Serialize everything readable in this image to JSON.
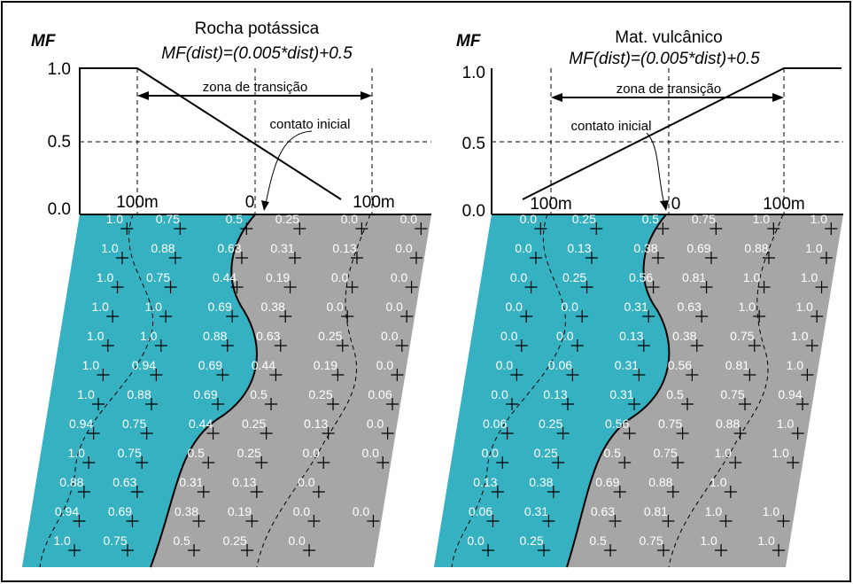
{
  "panels": [
    {
      "axis_label": "MF",
      "title": "Rocha potássica",
      "formula": "MF(dist)=(0.005*dist)+0.5",
      "y_labels": [
        "1.0",
        "0.5",
        "0.0"
      ],
      "x_labels": [
        "100m",
        "0",
        "100m"
      ],
      "zone_label": "zona de transição",
      "contact_label": "contato inicial",
      "grid": [
        [
          "1.0",
          "0.75",
          "0.5",
          "0.25",
          "0.0",
          "0.0"
        ],
        [
          "1.0",
          "0.88",
          "0.63",
          "0.31",
          "0.13",
          "0.0"
        ],
        [
          "1.0",
          "0.75",
          "0.44",
          "0.19",
          "0.0",
          "0.0"
        ],
        [
          "1.0",
          "1.0",
          "0.69",
          "0.38",
          "0.0",
          "0.0"
        ],
        [
          "1.0",
          "1.0",
          "0.88",
          "0.63",
          "0.25",
          "0.0"
        ],
        [
          "1.0",
          "0.94",
          "0.69",
          "0.44",
          "0.19",
          "0.0"
        ],
        [
          "1.0",
          "0.88",
          "0.69",
          "0.5",
          "0.25",
          "0.06"
        ],
        [
          "0.94",
          "0.75",
          "0.44",
          "0.25",
          "0.13",
          "0.0"
        ],
        [
          "1.0",
          "0.75",
          "0.5",
          "0.25",
          "0.0",
          "0.0"
        ],
        [
          "0.88",
          "0.63",
          "0.31",
          "0.13",
          "0.0"
        ],
        [
          "0.94",
          "0.69",
          "0.38",
          "0.19",
          "0.0",
          "0.0"
        ],
        [
          "1.0",
          "0.75",
          "0.5",
          "0.25",
          "0.0"
        ]
      ]
    },
    {
      "axis_label": "MF",
      "title": "Mat. vulcânico",
      "formula": "MF(dist)=(0.005*dist)+0.5",
      "y_labels": [
        "1.0",
        "0.5",
        "0.0"
      ],
      "x_labels": [
        "100m",
        "0",
        "100m"
      ],
      "zone_label": "zona de transição",
      "contact_label": "contato inicial",
      "grid": [
        [
          "0.0",
          "0.25",
          "0.5",
          "0.75",
          "1.0",
          "1.0"
        ],
        [
          "0.0",
          "0.13",
          "0.38",
          "0.69",
          "0.88",
          "1.0"
        ],
        [
          "0.0",
          "0.25",
          "0.56",
          "0.81",
          "1.0",
          "1.0"
        ],
        [
          "0.0",
          "0.0",
          "0.31",
          "0.63",
          "1.0",
          "1.0"
        ],
        [
          "0.0",
          "0.0",
          "0.13",
          "0.38",
          "0.75",
          "1.0"
        ],
        [
          "0.0",
          "0.06",
          "0.31",
          "0.56",
          "0.81",
          "1.0"
        ],
        [
          "0.0",
          "0.13",
          "0.31",
          "0.5",
          "0.75",
          "0.94"
        ],
        [
          "0.06",
          "0.25",
          "0.56",
          "0.75",
          "0.88",
          "1.0"
        ],
        [
          "0.0",
          "0.25",
          "0.5",
          "0.75",
          "1.0",
          "1.0"
        ],
        [
          "0.13",
          "0.38",
          "0.69",
          "0.88",
          "1.0"
        ],
        [
          "0.06",
          "0.31",
          "0.63",
          "0.81",
          "1.0",
          "1.0"
        ],
        [
          "0.0",
          "0.25",
          "0.5",
          "0.75",
          "1.0",
          "1.0"
        ]
      ]
    }
  ]
}
